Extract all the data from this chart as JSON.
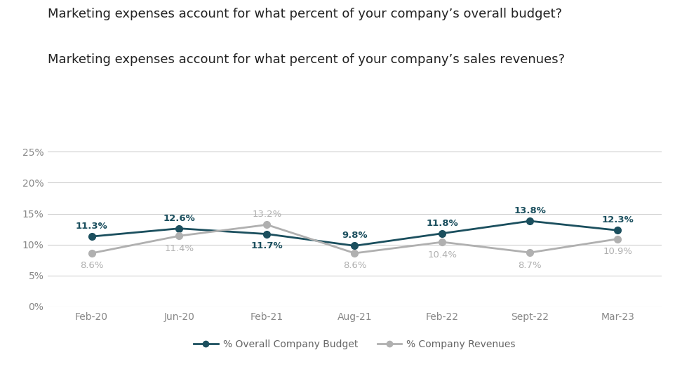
{
  "title_line1": "Marketing expenses account for what percent of your company’s overall budget?",
  "title_line2": "Marketing expenses account for what percent of your company’s sales revenues?",
  "categories": [
    "Feb-20",
    "Jun-20",
    "Feb-21",
    "Aug-21",
    "Feb-22",
    "Sept-22",
    "Mar-23"
  ],
  "budget_values": [
    11.3,
    12.6,
    11.7,
    9.8,
    11.8,
    13.8,
    12.3
  ],
  "revenue_values": [
    8.6,
    11.4,
    13.2,
    8.6,
    10.4,
    8.7,
    10.9
  ],
  "budget_color": "#1b4f5e",
  "revenue_color": "#b0b0b0",
  "budget_label": "% Overall Company Budget",
  "revenue_label": "% Company Revenues",
  "ylim": [
    0,
    26
  ],
  "yticks": [
    0,
    5,
    10,
    15,
    20,
    25
  ],
  "background_color": "#ffffff",
  "grid_color": "#d0d0d0",
  "title_fontsize": 13.0,
  "label_fontsize": 9.5,
  "tick_fontsize": 10,
  "legend_fontsize": 10,
  "annotation_offset_budget": [
    0.9,
    0.9,
    -1.2,
    0.9,
    0.9,
    0.9,
    0.9
  ],
  "annotation_offset_revenue": [
    -1.3,
    -1.3,
    0.9,
    -1.3,
    -1.3,
    -1.3,
    -1.3
  ]
}
